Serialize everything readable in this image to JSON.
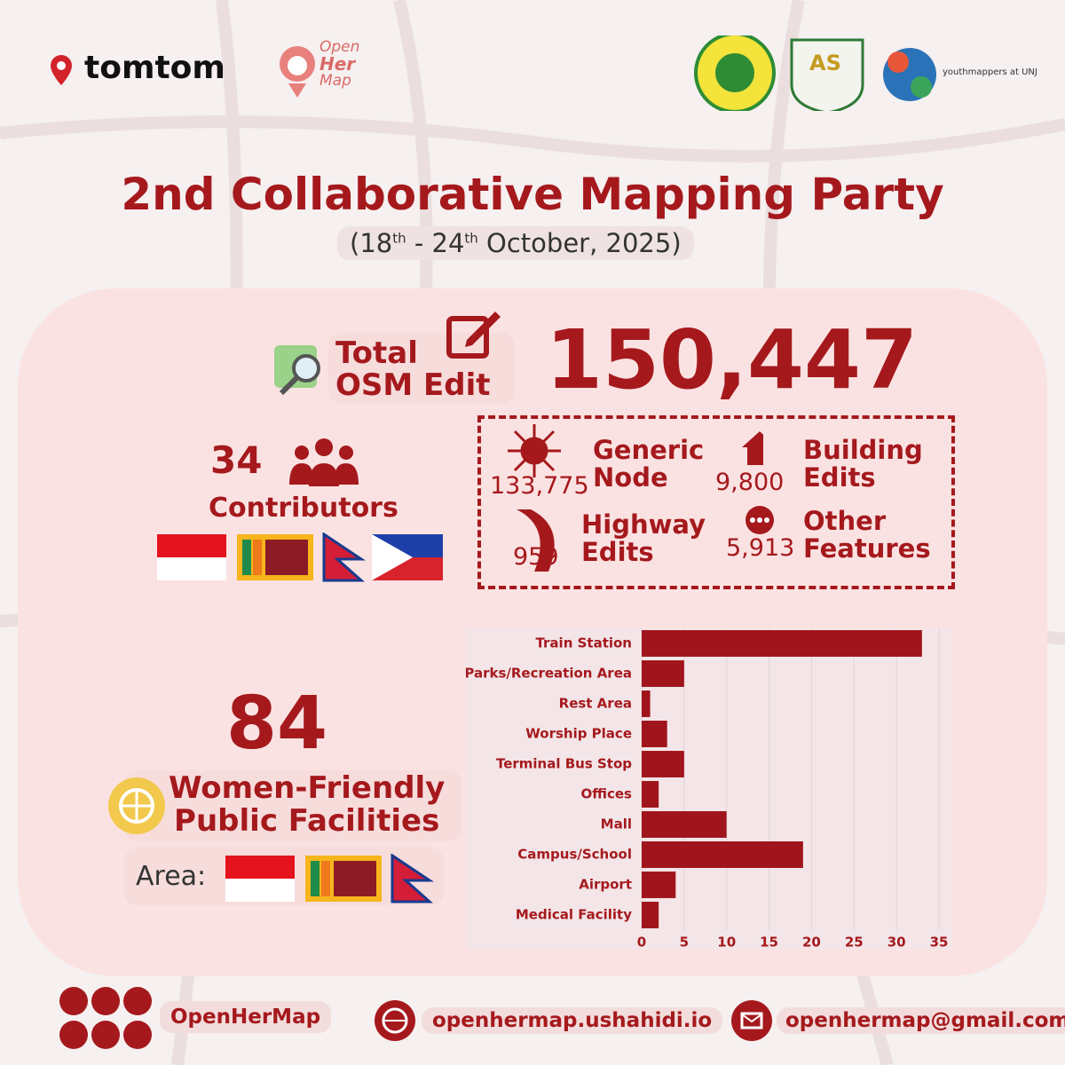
{
  "logos": {
    "tomtom": "tomtom",
    "openhermap": [
      "Open",
      "Her",
      "Map"
    ],
    "seal": "AS",
    "youthmappers": "youthmappers at UNJ"
  },
  "header": {
    "title": "2nd Collaborative Mapping Party",
    "subtitle_parts": [
      "(18",
      "th",
      " - 24",
      "th",
      " October, 2025)"
    ]
  },
  "total_osm_edit": {
    "label_lines": [
      "Total",
      "OSM Edit"
    ],
    "value": "150,447"
  },
  "contributors": {
    "count": "34",
    "label": "Contributors"
  },
  "breakdown": [
    {
      "value": "133,775",
      "label_lines": [
        "Generic",
        "Node"
      ]
    },
    {
      "value": "9,800",
      "label_lines": [
        "Building",
        "Edits"
      ]
    },
    {
      "value": "959",
      "label_lines": [
        "Highway",
        "Edits"
      ]
    },
    {
      "value": "5,913",
      "label_lines": [
        "Other",
        "Features"
      ]
    }
  ],
  "facilities": {
    "count": "84",
    "label_lines": [
      "Women-Friendly",
      "Public Facilities"
    ],
    "area_label": "Area:"
  },
  "footer": {
    "social": "OpenHerMap",
    "website": "openhermap.ushahidi.io",
    "email": "openhermap@gmail.com"
  },
  "chart_data": {
    "type": "bar",
    "orientation": "horizontal",
    "categories": [
      "Train Station",
      "Parks/Recreation Area",
      "Rest Area",
      "Worship Place",
      "Terminal Bus Stop",
      "Offices",
      "Mall",
      "Campus/School",
      "Airport",
      "Medical Facility"
    ],
    "values": [
      33,
      5,
      1,
      3,
      5,
      2,
      10,
      19,
      4,
      2
    ],
    "color": "#a0141b",
    "xlim": [
      0,
      35
    ],
    "xticks": [
      0,
      5,
      10,
      15,
      20,
      25,
      30,
      35
    ],
    "grid": true
  }
}
